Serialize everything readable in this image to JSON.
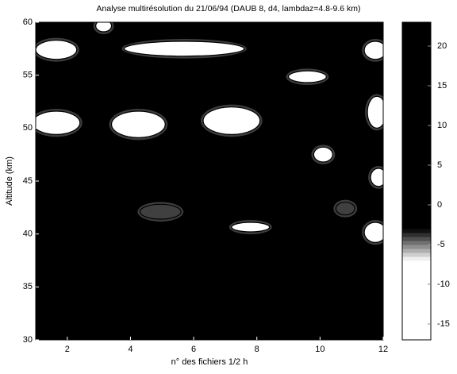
{
  "chart_data": {
    "type": "contour",
    "title": "Analyse multirésolution du 21/06/94 (DAUB 8, d4, lambdaz=4.8-9.6 km)",
    "xlabel": "n° des fichiers 1/2 h",
    "ylabel": "Altitude (km)",
    "xlim": [
      1,
      12
    ],
    "ylim": [
      30,
      60
    ],
    "xticks": [
      2,
      4,
      6,
      8,
      10,
      12
    ],
    "yticks": [
      30,
      35,
      40,
      45,
      50,
      55,
      60
    ],
    "background_value": 10,
    "regions": [
      {
        "x": [
          1,
          2.3
        ],
        "y": [
          56.5,
          58.3
        ],
        "value": -10
      },
      {
        "x": [
          2.9,
          3.4
        ],
        "y": [
          59.1,
          60.2
        ],
        "value": -10
      },
      {
        "x": [
          3.8,
          7.6
        ],
        "y": [
          56.8,
          58.2
        ],
        "value": -10
      },
      {
        "x": [
          9.0,
          10.2
        ],
        "y": [
          54.3,
          55.4
        ],
        "value": -10
      },
      {
        "x": [
          11.4,
          12.1
        ],
        "y": [
          56.5,
          58.2
        ],
        "value": -10
      },
      {
        "x": [
          0.9,
          2.4
        ],
        "y": [
          49.4,
          51.6
        ],
        "value": -10
      },
      {
        "x": [
          3.4,
          5.1
        ],
        "y": [
          49.1,
          51.6
        ],
        "value": -10
      },
      {
        "x": [
          6.3,
          8.1
        ],
        "y": [
          49.4,
          52
        ],
        "value": -10
      },
      {
        "x": [
          9.8,
          10.4
        ],
        "y": [
          46.8,
          48.2
        ],
        "value": -10
      },
      {
        "x": [
          11.5,
          12.1
        ],
        "y": [
          50,
          53
        ],
        "value": -10
      },
      {
        "x": [
          11.6,
          12.1
        ],
        "y": [
          44.5,
          46.2
        ],
        "value": -10
      },
      {
        "x": [
          7.2,
          8.4
        ],
        "y": [
          40.2,
          41.1
        ],
        "value": -10
      },
      {
        "x": [
          11.4,
          12.1
        ],
        "y": [
          39.2,
          41.1
        ],
        "value": -10
      },
      {
        "x": [
          4.3,
          5.6
        ],
        "y": [
          41.4,
          42.8
        ],
        "value": -4
      },
      {
        "x": [
          10.5,
          11.1
        ],
        "y": [
          41.8,
          43
        ],
        "value": -4
      }
    ],
    "colorbar": {
      "clim": [
        -17,
        23
      ],
      "ticks": [
        -15,
        -10,
        -5,
        0,
        5,
        10,
        15,
        20
      ]
    },
    "colormap": {
      "black_above": -3,
      "white_below": -7
    }
  }
}
